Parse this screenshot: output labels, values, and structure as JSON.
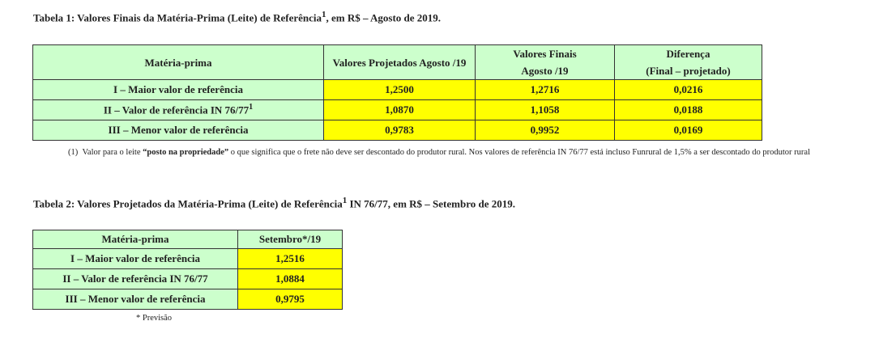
{
  "title1": {
    "text": "Tabela 1: Valores Finais da Matéria-Prima (Leite) de Referência",
    "sup": "1",
    "tail": ", em R$ – Agosto de 2019."
  },
  "table1": {
    "header": [
      "Matéria-prima",
      "Valores Projetados Agosto /19",
      [
        "Valores Finais",
        "Agosto /19"
      ],
      [
        "Diferença",
        "(Final – projetado)"
      ]
    ],
    "rows": [
      [
        {
          "text": "I – Maior valor de referência"
        },
        "1,2500",
        "1,2716",
        "0,0216"
      ],
      [
        {
          "text": "II – Valor de referência IN 76/77",
          "sup": "1"
        },
        "1,0870",
        "1,1058",
        "0,0188"
      ],
      [
        {
          "text": "III – Menor valor de referência"
        },
        "0,9783",
        "0,9952",
        "0,0169"
      ]
    ]
  },
  "footnote": {
    "marker": "(1)",
    "before": "Valor para o leite ",
    "bold": "“posto na propriedade”",
    "after": " o que significa que o frete não deve ser descontado do produtor rural. Nos valores de referência IN 76/77 está incluso Funrural de 1,5% a ser descontado do produtor rural"
  },
  "title2": {
    "text": "Tabela 2: Valores Projetados da Matéria-Prima (Leite) de Referência",
    "sup": "1",
    "tail": " IN 76/77, em R$ – Setembro de 2019."
  },
  "table2": {
    "header": [
      "Matéria-prima",
      "Setembro*/19"
    ],
    "rows": [
      [
        "I – Maior valor de referência",
        "1,2516"
      ],
      [
        "II – Valor de referência IN 76/77",
        "1,0884"
      ],
      [
        "III – Menor valor de referência",
        "0,9795"
      ]
    ]
  },
  "note": "* Previsão"
}
